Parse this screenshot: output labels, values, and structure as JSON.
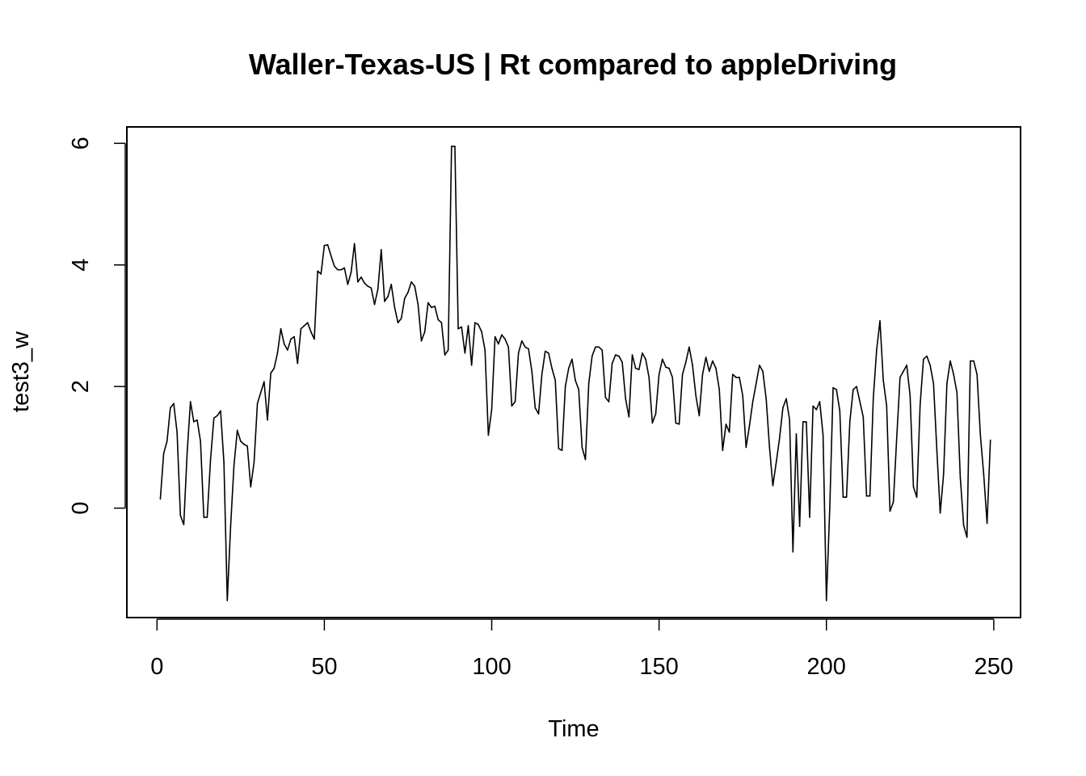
{
  "chart_data": {
    "type": "line",
    "title": "Waller-Texas-US | Rt compared to appleDriving",
    "xlabel": "Time",
    "ylabel": "test3_w",
    "xlim": [
      -9,
      258
    ],
    "ylim": [
      -1.8,
      6.27
    ],
    "xticks": [
      0,
      50,
      100,
      150,
      200,
      250
    ],
    "yticks": [
      0,
      2,
      4,
      6
    ],
    "grid": false,
    "legend": "none",
    "line_color": "#000000",
    "series": [
      {
        "x_start": 1,
        "x_step": 1,
        "values": [
          0.15,
          0.9,
          1.1,
          1.65,
          1.72,
          1.25,
          -0.12,
          -0.27,
          0.9,
          1.75,
          1.42,
          1.45,
          1.1,
          -0.15,
          -0.15,
          0.8,
          1.48,
          1.52,
          1.6,
          0.75,
          -1.52,
          -0.3,
          0.7,
          1.28,
          1.1,
          1.05,
          1.02,
          0.35,
          0.75,
          1.72,
          1.9,
          2.08,
          1.45,
          2.22,
          2.3,
          2.55,
          2.95,
          2.7,
          2.6,
          2.78,
          2.82,
          2.38,
          2.95,
          3.0,
          3.05,
          2.9,
          2.78,
          3.9,
          3.85,
          4.32,
          4.33,
          4.15,
          3.98,
          3.92,
          3.92,
          3.95,
          3.68,
          3.88,
          4.35,
          3.72,
          3.8,
          3.7,
          3.65,
          3.62,
          3.35,
          3.6,
          4.25,
          3.4,
          3.48,
          3.68,
          3.3,
          3.05,
          3.12,
          3.45,
          3.55,
          3.72,
          3.65,
          3.35,
          2.75,
          2.9,
          3.38,
          3.3,
          3.32,
          3.1,
          3.05,
          2.52,
          2.6,
          5.95,
          5.95,
          2.95,
          2.98,
          2.55,
          3.0,
          2.35,
          3.05,
          3.02,
          2.9,
          2.6,
          1.2,
          1.62,
          2.82,
          2.7,
          2.85,
          2.78,
          2.65,
          1.68,
          1.75,
          2.55,
          2.75,
          2.65,
          2.62,
          2.25,
          1.65,
          1.55,
          2.2,
          2.58,
          2.55,
          2.3,
          2.1,
          0.98,
          0.95,
          2.0,
          2.3,
          2.45,
          2.1,
          1.95,
          1.0,
          0.8,
          2.05,
          2.5,
          2.65,
          2.65,
          2.6,
          1.82,
          1.75,
          2.38,
          2.52,
          2.5,
          2.4,
          1.8,
          1.5,
          2.52,
          2.3,
          2.28,
          2.55,
          2.45,
          2.15,
          1.4,
          1.55,
          2.2,
          2.45,
          2.32,
          2.3,
          2.15,
          1.4,
          1.38,
          2.2,
          2.4,
          2.65,
          2.35,
          1.85,
          1.52,
          2.2,
          2.48,
          2.25,
          2.42,
          2.3,
          1.95,
          0.95,
          1.38,
          1.25,
          2.2,
          2.15,
          2.15,
          1.85,
          1.0,
          1.35,
          1.75,
          2.05,
          2.35,
          2.25,
          1.8,
          1.0,
          0.37,
          0.75,
          1.15,
          1.65,
          1.8,
          1.45,
          -0.72,
          1.22,
          -0.3,
          1.42,
          1.42,
          -0.15,
          1.68,
          1.62,
          1.75,
          1.2,
          -1.52,
          0.0,
          1.98,
          1.95,
          1.6,
          0.18,
          0.18,
          1.42,
          1.95,
          2.0,
          1.75,
          1.5,
          0.2,
          0.2,
          1.8,
          2.6,
          3.08,
          2.1,
          1.68,
          -0.05,
          0.1,
          1.15,
          2.15,
          2.25,
          2.35,
          1.85,
          0.35,
          0.18,
          1.7,
          2.45,
          2.5,
          2.35,
          2.05,
          0.95,
          -0.08,
          0.55,
          2.05,
          2.42,
          2.2,
          1.9,
          0.5,
          -0.28,
          -0.48,
          2.42,
          2.42,
          2.2,
          1.2,
          0.55,
          -0.25,
          1.12
        ]
      }
    ]
  }
}
